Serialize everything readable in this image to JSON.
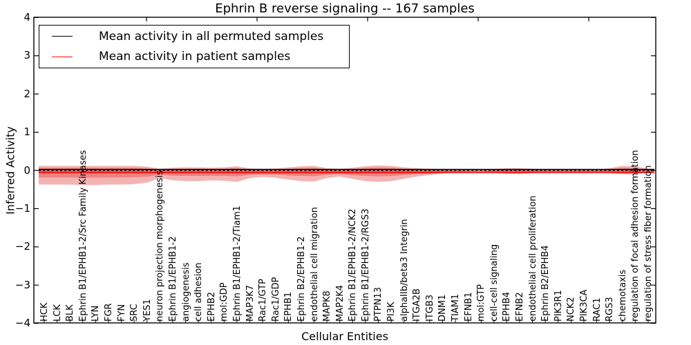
{
  "title": "Ephrin B reverse signaling -- 167 samples",
  "legend": {
    "items": [
      {
        "label": "Mean activity in all permuted samples",
        "color": "#000000"
      },
      {
        "label": "Mean activity in patient samples",
        "color": "#ff0000"
      }
    ]
  },
  "axes": {
    "xlabel": "Cellular Entities",
    "ylabel": "Inferred Activity",
    "ylim": [
      -4,
      4
    ],
    "ytick_values": [
      4,
      3,
      2,
      1,
      0,
      -1,
      -2,
      -3,
      -4
    ]
  },
  "chart_data": {
    "type": "area",
    "title": "Ephrin B reverse signaling -- 167 samples",
    "xlabel": "Cellular Entities",
    "ylabel": "Inferred Activity",
    "ylim": [
      -4,
      4
    ],
    "grid": false,
    "legend_position": "upper left",
    "categories": [
      "HCK",
      "LCK",
      "BLK",
      "Ephrin B1/EPHB1-2/Src Family Kinases",
      "LYN",
      "FGR",
      "FYN",
      "SRC",
      "YES1",
      "neuron projection morphogenesis",
      "Ephrin B1/EPHB1-2",
      "angiogenesis",
      "cell adhesion",
      "EPHB2",
      "mol:GDP",
      "Ephrin B1/EPHB1-2/Tiam1",
      "MAP3K7",
      "Rac1/GTP",
      "Rac1/GDP",
      "EPHB1",
      "Ephrin B2/EPHB1-2",
      "endothelial cell migration",
      "MAPK8",
      "MAP2K4",
      "Ephrin B1/EPHB1-2/NCK2",
      "Ephrin B1/EPHB1-2/RGS3",
      "PTPN13",
      "PI3K",
      "alphaIIb/beta3 Integrin",
      "ITGA2B",
      "ITGB3",
      "DNM1",
      "TIAM1",
      "EFNB1",
      "mol:GTP",
      "cell-cell signaling",
      "EPHB4",
      "EFNB2",
      "endothelial cell proliferation",
      "Ephrin B2/EPHB4",
      "PIK3R1",
      "NCK2",
      "PIK3CA",
      "RAC1",
      "RGS3",
      "chemotaxis",
      "regulation of focal adhesion formation",
      "regulation of stress fiber formation"
    ],
    "series": [
      {
        "name": "Mean activity in all permuted samples",
        "type": "line",
        "style": "solid",
        "color": "#000000",
        "value": 0.025
      },
      {
        "name": "Zero reference",
        "type": "line",
        "style": "dashed",
        "color": "#000000",
        "value": -0.005
      },
      {
        "name": "Mean activity in patient samples",
        "type": "line",
        "style": "solid",
        "color": "#ff0000",
        "value": -0.05
      },
      {
        "name": "Permuted samples std band",
        "type": "band",
        "color": "#e4e4e4",
        "upper": 0.06,
        "lower": -0.085
      },
      {
        "name": "Patient samples std band (outer)",
        "type": "band",
        "color": "rgba(220,20,20,0.32)",
        "upper": [
          0.12,
          0.12,
          0.12,
          0.12,
          0.12,
          0.12,
          0.12,
          0.12,
          0.1,
          0.04,
          0.07,
          0.08,
          0.08,
          0.07,
          0.08,
          0.11,
          0.05,
          0.04,
          0.05,
          0.08,
          0.11,
          0.12,
          0.06,
          0.04,
          0.07,
          0.11,
          0.13,
          0.12,
          0.08,
          0.06,
          0.04,
          0.03,
          0.02,
          0.01,
          0.01,
          0.03,
          0.06,
          0.06,
          0.04,
          0.02,
          0.02,
          0.02,
          0.02,
          0.02,
          0.06,
          0.12,
          0.11,
          0.04
        ],
        "lower": [
          -0.37,
          -0.37,
          -0.37,
          -0.38,
          -0.38,
          -0.37,
          -0.37,
          -0.36,
          -0.32,
          -0.2,
          -0.26,
          -0.28,
          -0.28,
          -0.26,
          -0.27,
          -0.3,
          -0.2,
          -0.17,
          -0.19,
          -0.24,
          -0.28,
          -0.29,
          -0.2,
          -0.16,
          -0.22,
          -0.28,
          -0.3,
          -0.28,
          -0.22,
          -0.16,
          -0.12,
          -0.08,
          -0.05,
          -0.03,
          -0.02,
          -0.06,
          -0.09,
          -0.09,
          -0.07,
          -0.05,
          -0.05,
          -0.04,
          -0.04,
          -0.04,
          -0.07,
          -0.1,
          -0.1,
          -0.05
        ]
      },
      {
        "name": "Patient samples std band (inner)",
        "type": "band",
        "color": "rgba(220,20,20,0.30)",
        "derive": "scale",
        "center": -0.05,
        "f_up": 0.7,
        "f_low": 0.42
      }
    ]
  }
}
